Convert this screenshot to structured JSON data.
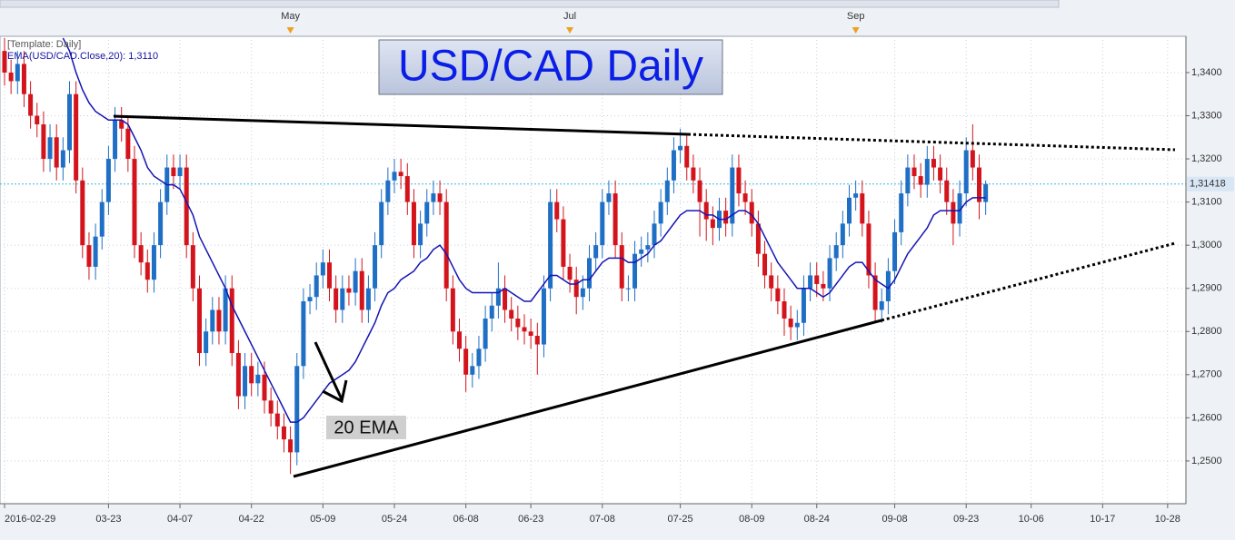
{
  "chart_data": {
    "type": "candlestick",
    "title": "USD/CAD Daily",
    "template_label": "[Template: Daily]",
    "indicator_label": "EMA(USD/CAD.Close,20): 1,3110",
    "annotation": "20 EMA",
    "up_color": "#1f6fc5",
    "down_color": "#d3141c",
    "grid": true,
    "categories": [
      "2016-02-29",
      null,
      null,
      null,
      null,
      null,
      null,
      null,
      null,
      null,
      null,
      null,
      null,
      null,
      null,
      null,
      "03-23",
      null,
      null,
      null,
      null,
      null,
      null,
      null,
      null,
      null,
      null,
      "04-07",
      null,
      null,
      null,
      null,
      null,
      null,
      null,
      null,
      null,
      null,
      "04-22",
      null,
      null,
      null,
      null,
      null,
      null,
      null,
      null,
      null,
      null,
      "05-09",
      null,
      null,
      null,
      null,
      null,
      null,
      null,
      null,
      null,
      null,
      "05-24",
      null,
      null,
      null,
      null,
      null,
      null,
      null,
      null,
      null,
      null,
      "06-08",
      null,
      null,
      null,
      null,
      null,
      null,
      null,
      null,
      null,
      "06-23",
      null,
      null,
      null,
      null,
      null,
      null,
      null,
      null,
      null,
      null,
      "07-08",
      null,
      null,
      null,
      null,
      null,
      null,
      null,
      null,
      null,
      null,
      null,
      "07-25",
      null,
      null,
      null,
      null,
      null,
      null,
      null,
      null,
      null,
      null,
      "08-09",
      null,
      null,
      null,
      null,
      null,
      null,
      null,
      null,
      null,
      "08-24",
      null,
      null,
      null,
      null,
      null,
      null,
      null,
      null,
      null,
      null,
      null,
      "09-08",
      null,
      null,
      null,
      null,
      null,
      null,
      null,
      null,
      null,
      null,
      "09-23",
      null,
      null,
      null,
      null,
      null,
      null,
      null,
      null,
      null,
      "10-06",
      null,
      null,
      null,
      null,
      null,
      null,
      null,
      null,
      null,
      null,
      "10-17",
      null,
      null,
      null,
      null,
      null,
      null,
      null,
      null,
      null,
      "10-28"
    ],
    "months": [
      null,
      null,
      null,
      null,
      null,
      null,
      null,
      null,
      null,
      null,
      null,
      null,
      null,
      null,
      null,
      null,
      null,
      null,
      null,
      null,
      null,
      null,
      null,
      null,
      null,
      null,
      null,
      null,
      null,
      null,
      null,
      null,
      null,
      null,
      null,
      null,
      null,
      null,
      null,
      null,
      null,
      null,
      null,
      null,
      "May",
      null,
      null,
      null,
      null,
      null,
      null,
      null,
      null,
      null,
      null,
      null,
      null,
      null,
      null,
      null,
      null,
      null,
      null,
      null,
      null,
      null,
      null,
      null,
      null,
      null,
      null,
      null,
      null,
      null,
      null,
      null,
      null,
      null,
      null,
      null,
      null,
      null,
      null,
      null,
      null,
      null,
      null,
      "Jul",
      null,
      null,
      null,
      null,
      null,
      null,
      null,
      null,
      null,
      null,
      null,
      null,
      null,
      null,
      null,
      null,
      null,
      null,
      null,
      null,
      null,
      null,
      null,
      null,
      null,
      null,
      null,
      null,
      null,
      null,
      null,
      null,
      null,
      null,
      null,
      null,
      null,
      null,
      null,
      null,
      null,
      null,
      null,
      "Sep",
      null,
      null,
      null,
      null,
      null,
      null,
      null,
      null,
      null,
      null,
      null,
      null,
      null,
      null,
      null,
      null,
      null,
      null,
      null,
      null,
      null,
      null,
      null,
      null,
      null,
      null,
      null,
      null,
      null,
      null,
      null,
      null,
      null,
      null,
      null,
      null,
      null,
      null,
      null,
      null,
      null,
      null,
      null,
      null,
      null,
      null,
      null,
      null
    ],
    "open": [
      1.345,
      1.34,
      1.338,
      1.342,
      1.335,
      1.33,
      1.328,
      1.32,
      1.325,
      1.318,
      1.322,
      1.335,
      1.315,
      1.3,
      1.295,
      1.302,
      1.31,
      1.32,
      1.329,
      1.327,
      1.32,
      1.3,
      1.296,
      1.292,
      1.3,
      1.31,
      1.318,
      1.316,
      1.318,
      1.3,
      1.29,
      1.275,
      1.28,
      1.285,
      1.28,
      1.29,
      1.275,
      1.265,
      1.272,
      1.268,
      1.27,
      1.264,
      1.261,
      1.258,
      1.255,
      1.252,
      1.272,
      1.287,
      1.288,
      1.293,
      1.296,
      1.29,
      1.285,
      1.29,
      1.289,
      1.294,
      1.285,
      1.29,
      1.3,
      1.31,
      1.315,
      1.317,
      1.316,
      1.31,
      1.3,
      1.305,
      1.31,
      1.312,
      1.31,
      1.29,
      1.28,
      1.276,
      1.27,
      1.272,
      1.276,
      1.283,
      1.286,
      1.29,
      1.285,
      1.283,
      1.281,
      1.28,
      1.279,
      1.277,
      1.29,
      1.31,
      1.306,
      1.295,
      1.292,
      1.288,
      1.29,
      1.297,
      1.3,
      1.31,
      1.312,
      1.3,
      1.29,
      1.29,
      1.298,
      1.299,
      1.3,
      1.305,
      1.31,
      1.315,
      1.322,
      1.323,
      1.318,
      1.315,
      1.31,
      1.306,
      1.304,
      1.308,
      1.305,
      1.318,
      1.312,
      1.31,
      1.305,
      1.298,
      1.293,
      1.29,
      1.287,
      1.283,
      1.281,
      1.282,
      1.29,
      1.293,
      1.291,
      1.29,
      1.297,
      1.3,
      1.305,
      1.311,
      1.312,
      1.305,
      1.293,
      1.285,
      1.287,
      1.294,
      1.303,
      1.312,
      1.318,
      1.316,
      1.314,
      1.32,
      1.318,
      1.315,
      1.31,
      1.305,
      1.312,
      1.322,
      1.318,
      1.31,
      null,
      null,
      null,
      null,
      null,
      null,
      null,
      null,
      null,
      null,
      null,
      null,
      null,
      null,
      null,
      null,
      null,
      null,
      null,
      null,
      null,
      null,
      null,
      null,
      null,
      null,
      null,
      null
    ],
    "high": [
      1.348,
      1.343,
      1.345,
      1.345,
      1.338,
      1.333,
      1.331,
      1.328,
      1.328,
      1.325,
      1.338,
      1.338,
      1.318,
      1.303,
      1.305,
      1.313,
      1.323,
      1.332,
      1.332,
      1.33,
      1.323,
      1.303,
      1.299,
      1.303,
      1.313,
      1.321,
      1.321,
      1.321,
      1.321,
      1.303,
      1.293,
      1.283,
      1.288,
      1.288,
      1.293,
      1.293,
      1.278,
      1.275,
      1.275,
      1.273,
      1.273,
      1.267,
      1.264,
      1.261,
      1.258,
      1.275,
      1.29,
      1.291,
      1.296,
      1.299,
      1.299,
      1.293,
      1.293,
      1.293,
      1.297,
      1.297,
      1.293,
      1.303,
      1.313,
      1.318,
      1.32,
      1.32,
      1.319,
      1.313,
      1.308,
      1.313,
      1.315,
      1.315,
      1.313,
      1.293,
      1.283,
      1.279,
      1.275,
      1.279,
      1.286,
      1.289,
      1.296,
      1.293,
      1.288,
      1.286,
      1.284,
      1.283,
      1.282,
      1.293,
      1.313,
      1.313,
      1.309,
      1.298,
      1.295,
      1.293,
      1.3,
      1.303,
      1.313,
      1.315,
      1.315,
      1.303,
      1.293,
      1.301,
      1.302,
      1.303,
      1.308,
      1.313,
      1.318,
      1.325,
      1.327,
      1.326,
      1.321,
      1.318,
      1.313,
      1.309,
      1.311,
      1.311,
      1.321,
      1.321,
      1.315,
      1.313,
      1.308,
      1.301,
      1.296,
      1.293,
      1.29,
      1.286,
      1.285,
      1.293,
      1.296,
      1.296,
      1.294,
      1.3,
      1.303,
      1.308,
      1.314,
      1.315,
      1.315,
      1.308,
      1.296,
      1.29,
      1.297,
      1.306,
      1.315,
      1.321,
      1.321,
      1.319,
      1.323,
      1.323,
      1.321,
      1.318,
      1.313,
      1.315,
      1.325,
      1.328,
      1.321,
      1.315,
      null,
      null,
      null,
      null,
      null,
      null,
      null,
      null,
      null,
      null,
      null,
      null,
      null,
      null,
      null,
      null,
      null,
      null,
      null,
      null,
      null,
      null,
      null,
      null,
      null,
      null,
      null,
      null
    ],
    "low": [
      1.337,
      1.335,
      1.335,
      1.332,
      1.327,
      1.325,
      1.317,
      1.317,
      1.315,
      1.315,
      1.319,
      1.312,
      1.297,
      1.292,
      1.292,
      1.299,
      1.307,
      1.317,
      1.324,
      1.317,
      1.297,
      1.293,
      1.289,
      1.289,
      1.297,
      1.307,
      1.313,
      1.313,
      1.297,
      1.287,
      1.272,
      1.272,
      1.277,
      1.277,
      1.277,
      1.272,
      1.262,
      1.262,
      1.265,
      1.265,
      1.261,
      1.258,
      1.255,
      1.252,
      1.247,
      1.249,
      1.269,
      1.284,
      1.285,
      1.29,
      1.287,
      1.282,
      1.282,
      1.286,
      1.286,
      1.282,
      1.282,
      1.287,
      1.297,
      1.307,
      1.312,
      1.313,
      1.307,
      1.297,
      1.297,
      1.302,
      1.307,
      1.307,
      1.287,
      1.277,
      1.273,
      1.266,
      1.267,
      1.269,
      1.273,
      1.28,
      1.283,
      1.282,
      1.28,
      1.278,
      1.277,
      1.276,
      1.27,
      1.274,
      1.287,
      1.303,
      1.292,
      1.289,
      1.284,
      1.285,
      1.287,
      1.294,
      1.297,
      1.307,
      1.297,
      1.287,
      1.287,
      1.287,
      1.295,
      1.296,
      1.297,
      1.302,
      1.307,
      1.312,
      1.319,
      1.315,
      1.312,
      1.302,
      1.301,
      1.3,
      1.301,
      1.302,
      1.302,
      1.309,
      1.307,
      1.302,
      1.295,
      1.29,
      1.287,
      1.284,
      1.279,
      1.278,
      1.278,
      1.279,
      1.287,
      1.288,
      1.287,
      1.287,
      1.294,
      1.297,
      1.302,
      1.308,
      1.302,
      1.29,
      1.282,
      1.282,
      1.284,
      1.291,
      1.3,
      1.309,
      1.313,
      1.311,
      1.311,
      1.315,
      1.312,
      1.307,
      1.3,
      1.302,
      1.309,
      1.315,
      1.306,
      1.307,
      null,
      null,
      null,
      null,
      null,
      null,
      null,
      null,
      null,
      null,
      null,
      null,
      null,
      null,
      null,
      null,
      null,
      null,
      null,
      null,
      null,
      null,
      null,
      null,
      null,
      null,
      null,
      null
    ],
    "close": [
      1.34,
      1.338,
      1.342,
      1.335,
      1.33,
      1.328,
      1.32,
      1.325,
      1.318,
      1.322,
      1.335,
      1.315,
      1.3,
      1.295,
      1.302,
      1.31,
      1.32,
      1.329,
      1.327,
      1.32,
      1.3,
      1.296,
      1.292,
      1.3,
      1.31,
      1.318,
      1.316,
      1.318,
      1.3,
      1.29,
      1.275,
      1.28,
      1.285,
      1.28,
      1.29,
      1.275,
      1.265,
      1.272,
      1.268,
      1.27,
      1.264,
      1.261,
      1.258,
      1.255,
      1.252,
      1.272,
      1.287,
      1.288,
      1.293,
      1.296,
      1.29,
      1.285,
      1.29,
      1.289,
      1.294,
      1.285,
      1.29,
      1.3,
      1.31,
      1.315,
      1.317,
      1.316,
      1.31,
      1.3,
      1.305,
      1.31,
      1.312,
      1.31,
      1.29,
      1.28,
      1.276,
      1.27,
      1.272,
      1.276,
      1.283,
      1.286,
      1.29,
      1.285,
      1.283,
      1.281,
      1.28,
      1.279,
      1.277,
      1.29,
      1.31,
      1.306,
      1.295,
      1.292,
      1.288,
      1.29,
      1.297,
      1.3,
      1.31,
      1.312,
      1.3,
      1.29,
      1.29,
      1.298,
      1.299,
      1.3,
      1.305,
      1.31,
      1.315,
      1.322,
      1.323,
      1.318,
      1.315,
      1.31,
      1.306,
      1.304,
      1.308,
      1.305,
      1.318,
      1.312,
      1.31,
      1.305,
      1.298,
      1.293,
      1.29,
      1.287,
      1.283,
      1.281,
      1.282,
      1.29,
      1.293,
      1.291,
      1.29,
      1.297,
      1.3,
      1.305,
      1.311,
      1.312,
      1.305,
      1.293,
      1.285,
      1.287,
      1.294,
      1.303,
      1.312,
      1.318,
      1.316,
      1.314,
      1.32,
      1.318,
      1.315,
      1.31,
      1.305,
      1.312,
      1.322,
      1.318,
      1.31,
      1.31418,
      null,
      null,
      null,
      null,
      null,
      null,
      null,
      null,
      null,
      null,
      null,
      null,
      null,
      null,
      null,
      null,
      null,
      null,
      null,
      null,
      null,
      null,
      null,
      null,
      null,
      null,
      null,
      null
    ],
    "ema": {
      "color": "#1414b4",
      "values": [
        null,
        null,
        null,
        null,
        null,
        null,
        null,
        null,
        null,
        1.348,
        1.345,
        1.34,
        1.336,
        1.333,
        1.331,
        1.33,
        1.329,
        1.329,
        1.329,
        1.328,
        1.325,
        1.322,
        1.318,
        1.316,
        1.315,
        1.314,
        1.314,
        1.313,
        1.31,
        1.307,
        1.302,
        1.299,
        1.296,
        1.293,
        1.29,
        1.286,
        1.283,
        1.28,
        1.277,
        1.274,
        1.271,
        1.268,
        1.265,
        1.262,
        1.259,
        1.259,
        1.26,
        1.262,
        1.264,
        1.266,
        1.268,
        1.269,
        1.27,
        1.271,
        1.273,
        1.276,
        1.279,
        1.282,
        1.286,
        1.289,
        1.29,
        1.292,
        1.293,
        1.294,
        1.296,
        1.297,
        1.299,
        1.3,
        1.298,
        1.295,
        1.292,
        1.29,
        1.289,
        1.289,
        1.289,
        1.289,
        1.289,
        1.29,
        1.289,
        1.288,
        1.287,
        1.287,
        1.289,
        1.291,
        1.293,
        1.293,
        1.292,
        1.291,
        1.291,
        1.292,
        1.292,
        1.294,
        1.296,
        1.297,
        1.297,
        1.297,
        1.296,
        1.296,
        1.297,
        1.298,
        1.3,
        1.301,
        1.303,
        1.305,
        1.307,
        1.308,
        1.308,
        1.308,
        1.307,
        1.307,
        1.306,
        1.306,
        1.307,
        1.308,
        1.308,
        1.307,
        1.305,
        1.302,
        1.299,
        1.296,
        1.294,
        1.292,
        1.29,
        1.29,
        1.29,
        1.289,
        1.288,
        1.289,
        1.291,
        1.293,
        1.295,
        1.296,
        1.296,
        1.294,
        1.292,
        1.291,
        1.29,
        1.292,
        1.295,
        1.298,
        1.3,
        1.302,
        1.304,
        1.307,
        1.308,
        1.308,
        1.308,
        1.308,
        1.31,
        1.311,
        1.311,
        1.311,
        null,
        null,
        null,
        null,
        null,
        null,
        null,
        null,
        null,
        null,
        null,
        null,
        null,
        null,
        null,
        null,
        null,
        null,
        null,
        null,
        null,
        null,
        null,
        null,
        null,
        null,
        null,
        null
      ]
    },
    "last_price": {
      "value": 1.31418,
      "label": "1,31418"
    },
    "ylim": [
      1.2401,
      1.3484
    ],
    "yticks": [
      {
        "value": 1.25,
        "label": "1,2500"
      },
      {
        "value": 1.26,
        "label": "1,2600"
      },
      {
        "value": 1.27,
        "label": "1,2700"
      },
      {
        "value": 1.28,
        "label": "1,2800"
      },
      {
        "value": 1.29,
        "label": "1,2900"
      },
      {
        "value": 1.3,
        "label": "1,3000"
      },
      {
        "value": 1.31,
        "label": "1,3100"
      },
      {
        "value": 1.32,
        "label": "1,3200"
      },
      {
        "value": 1.33,
        "label": "1,3300"
      },
      {
        "value": 1.34,
        "label": "1,3400"
      }
    ]
  }
}
